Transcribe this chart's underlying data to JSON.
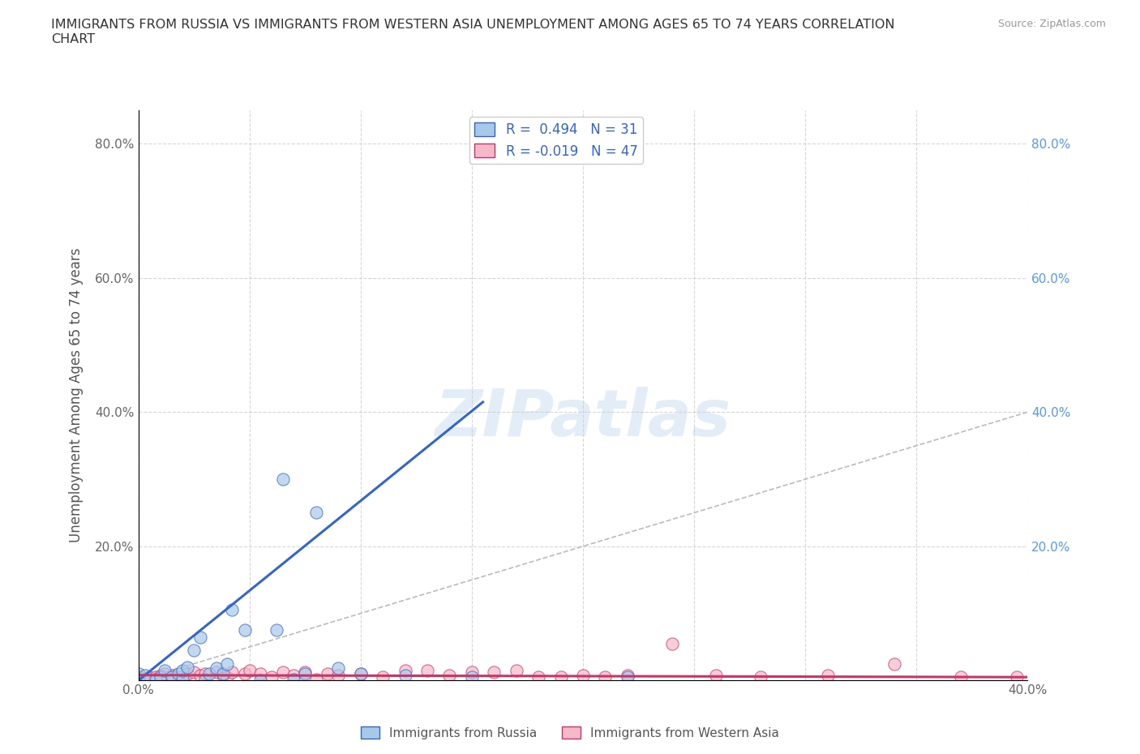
{
  "title": "IMMIGRANTS FROM RUSSIA VS IMMIGRANTS FROM WESTERN ASIA UNEMPLOYMENT AMONG AGES 65 TO 74 YEARS CORRELATION\nCHART",
  "source_text": "Source: ZipAtlas.com",
  "ylabel": "Unemployment Among Ages 65 to 74 years",
  "xlim": [
    0.0,
    0.4
  ],
  "ylim": [
    0.0,
    0.85
  ],
  "x_ticks": [
    0.0,
    0.05,
    0.1,
    0.15,
    0.2,
    0.25,
    0.3,
    0.35,
    0.4
  ],
  "y_ticks": [
    0.0,
    0.2,
    0.4,
    0.6,
    0.8
  ],
  "watermark": "ZIPatlas",
  "legend_r1": "R =  0.494",
  "legend_n1": "N = 31",
  "legend_r2": "R = -0.019",
  "legend_n2": "N = 47",
  "color_russia": "#a8c8e8",
  "color_western_asia": "#f4b8c8",
  "trendline_color_russia": "#3366cc",
  "trendline_color_western_asia": "#cc3366",
  "diagonal_color": "#bbbbbb",
  "russia_x": [
    0.0,
    0.0,
    0.003,
    0.008,
    0.01,
    0.012,
    0.015,
    0.018,
    0.02,
    0.02,
    0.022,
    0.025,
    0.028,
    0.03,
    0.032,
    0.035,
    0.038,
    0.04,
    0.042,
    0.048,
    0.055,
    0.062,
    0.065,
    0.07,
    0.075,
    0.08,
    0.09,
    0.1,
    0.12,
    0.15,
    0.22
  ],
  "russia_y": [
    0.005,
    0.01,
    0.008,
    0.002,
    0.005,
    0.015,
    0.005,
    0.01,
    0.002,
    0.015,
    0.02,
    0.045,
    0.065,
    0.002,
    0.01,
    0.018,
    0.01,
    0.025,
    0.105,
    0.075,
    0.0,
    0.075,
    0.3,
    0.002,
    0.01,
    0.25,
    0.018,
    0.01,
    0.008,
    0.005,
    0.005
  ],
  "western_asia_x": [
    0.0,
    0.003,
    0.005,
    0.008,
    0.01,
    0.012,
    0.015,
    0.018,
    0.02,
    0.022,
    0.025,
    0.028,
    0.03,
    0.035,
    0.038,
    0.04,
    0.042,
    0.048,
    0.05,
    0.055,
    0.06,
    0.065,
    0.07,
    0.075,
    0.08,
    0.085,
    0.09,
    0.1,
    0.11,
    0.12,
    0.13,
    0.14,
    0.15,
    0.16,
    0.17,
    0.18,
    0.19,
    0.2,
    0.21,
    0.22,
    0.24,
    0.26,
    0.28,
    0.31,
    0.34,
    0.37,
    0.395
  ],
  "western_asia_y": [
    0.005,
    0.003,
    0.005,
    0.005,
    0.008,
    0.01,
    0.008,
    0.005,
    0.002,
    0.01,
    0.012,
    0.008,
    0.01,
    0.012,
    0.008,
    0.005,
    0.012,
    0.01,
    0.015,
    0.01,
    0.005,
    0.012,
    0.008,
    0.012,
    0.002,
    0.01,
    0.008,
    0.01,
    0.005,
    0.015,
    0.015,
    0.008,
    0.012,
    0.012,
    0.015,
    0.005,
    0.005,
    0.008,
    0.005,
    0.008,
    0.055,
    0.008,
    0.005,
    0.008,
    0.025,
    0.005,
    0.005
  ],
  "russia_trendline_x": [
    0.0,
    0.155
  ],
  "russia_trendline_y": [
    0.0,
    0.415
  ],
  "western_trendline_x": [
    0.0,
    0.4
  ],
  "western_trendline_y": [
    0.008,
    0.005
  ],
  "background_color": "#ffffff",
  "grid_color": "#cccccc"
}
